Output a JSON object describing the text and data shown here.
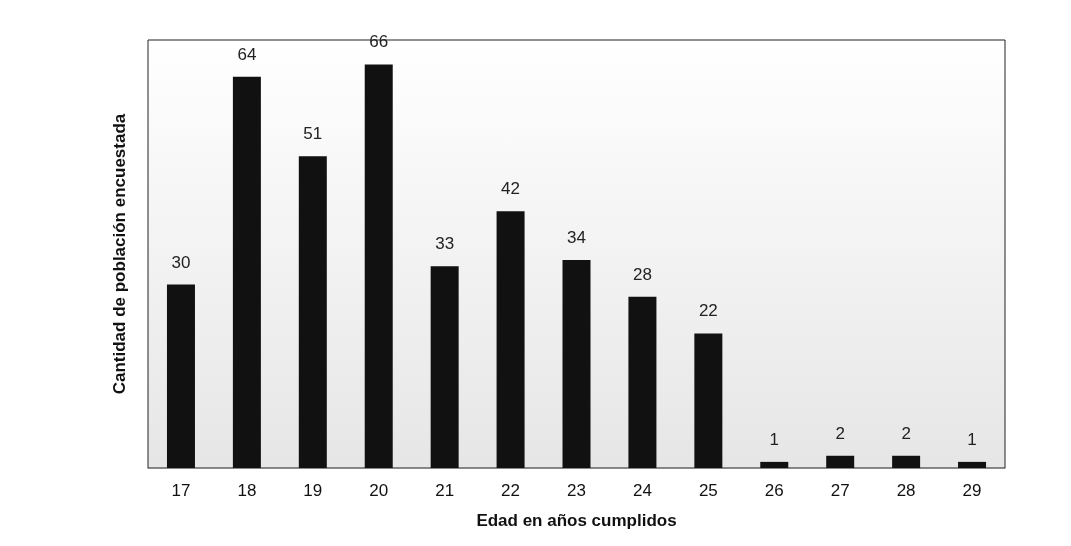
{
  "chart_data": {
    "type": "bar",
    "xlabel": "Edad en años cumplidos",
    "ylabel": "Cantidad de población encuestada",
    "categories": [
      "17",
      "18",
      "19",
      "20",
      "21",
      "22",
      "23",
      "24",
      "25",
      "26",
      "27",
      "28",
      "29"
    ],
    "values": [
      30,
      64,
      51,
      66,
      33,
      42,
      34,
      28,
      22,
      1,
      2,
      2,
      1
    ],
    "color": "#111111",
    "data_labels": true,
    "grid": false
  }
}
